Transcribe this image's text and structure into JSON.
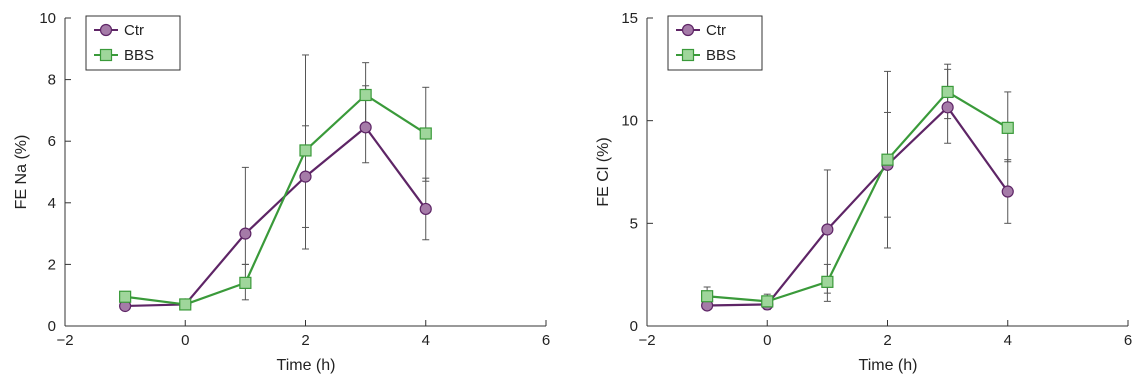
{
  "chart_data": [
    {
      "type": "line",
      "title": "",
      "xlabel": "Time (h)",
      "ylabel": "FE Na (%)",
      "xlim": [
        -2,
        6
      ],
      "ylim": [
        0,
        10
      ],
      "xticks": [
        "-2",
        "0",
        "2",
        "4",
        "6"
      ],
      "yticks": [
        "0",
        "2",
        "4",
        "6",
        "8",
        "10"
      ],
      "grid": false,
      "legend_position": "top-left",
      "series": [
        {
          "name": "Ctr",
          "marker": "circle",
          "color": "#5e2566",
          "marker_fill": "#a57ba8",
          "x": [
            -1,
            0,
            1,
            2,
            3,
            4
          ],
          "y": [
            0.65,
            0.7,
            3.0,
            4.85,
            6.45,
            3.8
          ],
          "err_low": [
            0.55,
            0.55,
            2.0,
            2.5,
            5.3,
            2.8
          ],
          "err_high": [
            0.75,
            0.85,
            5.15,
            6.5,
            7.8,
            4.8
          ]
        },
        {
          "name": "BBS",
          "marker": "square",
          "color": "#3a9a3a",
          "marker_fill": "#9fd69b",
          "x": [
            -1,
            0,
            1,
            2,
            3,
            4
          ],
          "y": [
            0.95,
            0.7,
            1.4,
            5.7,
            7.5,
            6.25
          ],
          "err_low": [
            0.8,
            0.55,
            0.85,
            3.2,
            6.4,
            4.7
          ],
          "err_high": [
            1.1,
            0.85,
            2.0,
            8.8,
            8.55,
            7.75
          ]
        }
      ]
    },
    {
      "type": "line",
      "title": "",
      "xlabel": "Time (h)",
      "ylabel": "FE Cl (%)",
      "xlim": [
        -2,
        6
      ],
      "ylim": [
        0,
        15
      ],
      "xticks": [
        "-2",
        "0",
        "2",
        "4",
        "6"
      ],
      "yticks": [
        "0",
        "5",
        "10",
        "15"
      ],
      "grid": false,
      "legend_position": "top-left",
      "series": [
        {
          "name": "Ctr",
          "marker": "circle",
          "color": "#5e2566",
          "marker_fill": "#a57ba8",
          "x": [
            -1,
            0,
            1,
            2,
            3,
            4
          ],
          "y": [
            1.0,
            1.05,
            4.7,
            7.85,
            10.65,
            6.55
          ],
          "err_low": [
            0.8,
            0.8,
            1.6,
            5.3,
            8.9,
            5.0
          ],
          "err_high": [
            1.2,
            1.4,
            7.6,
            10.4,
            12.5,
            8.1
          ]
        },
        {
          "name": "BBS",
          "marker": "square",
          "color": "#3a9a3a",
          "marker_fill": "#9fd69b",
          "x": [
            -1,
            0,
            1,
            2,
            3,
            4
          ],
          "y": [
            1.45,
            1.2,
            2.15,
            8.1,
            11.4,
            9.65
          ],
          "err_low": [
            1.0,
            1.0,
            1.2,
            3.8,
            10.1,
            8.0
          ],
          "err_high": [
            1.9,
            1.55,
            3.0,
            12.4,
            12.75,
            11.4
          ]
        }
      ]
    }
  ]
}
